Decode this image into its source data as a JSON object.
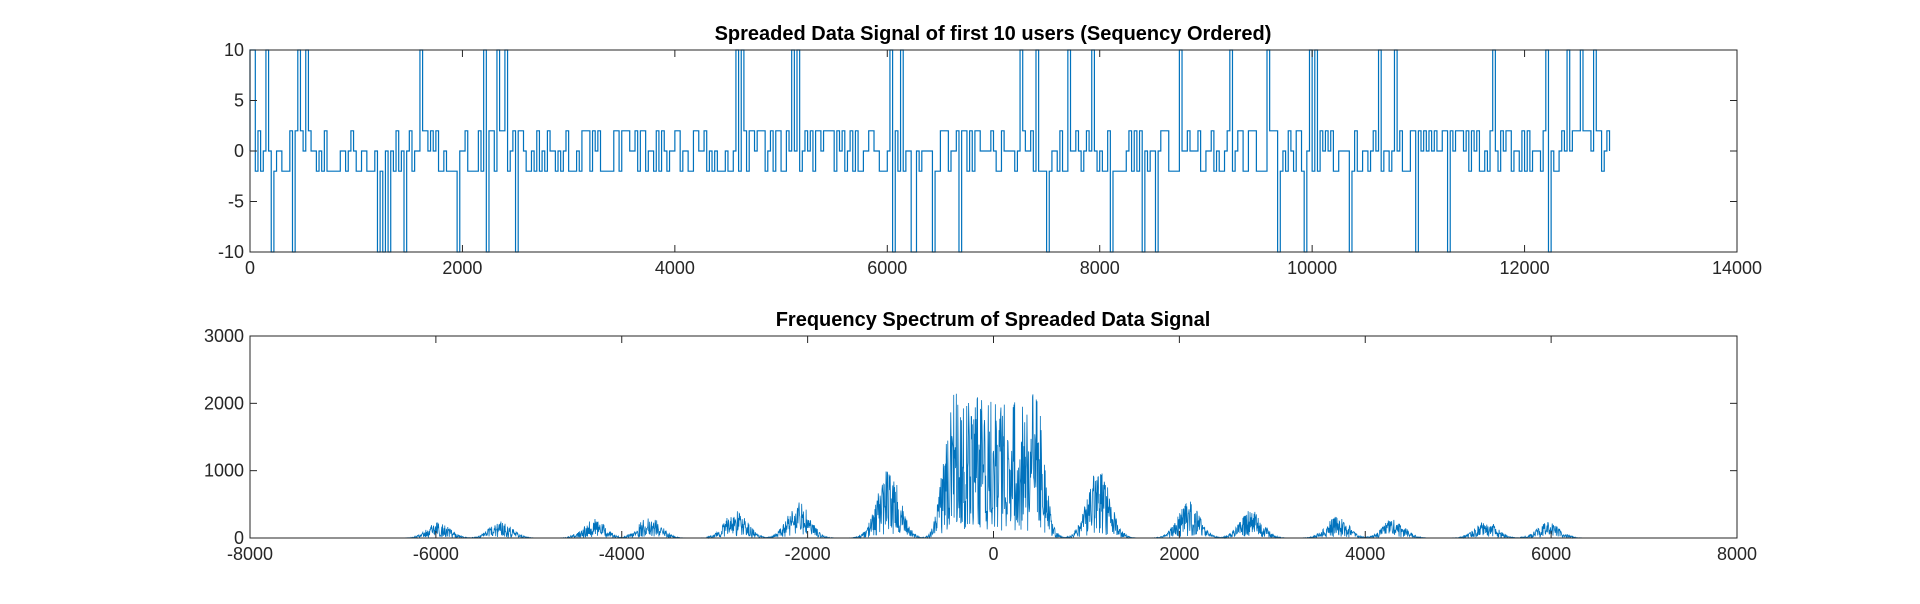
{
  "chart_data": [
    {
      "type": "line",
      "title": "Spreaded Data Signal of first 10 users (Sequency Ordered)",
      "xlabel": "",
      "ylabel": "",
      "xlim": [
        0,
        14000
      ],
      "ylim": [
        -10,
        10
      ],
      "xticks": [
        0,
        2000,
        4000,
        6000,
        8000,
        10000,
        12000,
        14000
      ],
      "yticks": [
        -10,
        -5,
        0,
        5,
        10
      ],
      "xtick_labels": [
        "0",
        "2000",
        "4000",
        "6000",
        "8000",
        "10000",
        "12000",
        "14000"
      ],
      "ytick_labels": [
        "-10",
        "-5",
        "0",
        "5",
        "10"
      ],
      "grid": false,
      "signal": {
        "x_start": 0,
        "x_end": 12800,
        "base_levels": [
          2,
          -2,
          0
        ],
        "spike_levels": [
          10,
          -10
        ],
        "color": "#0072BD"
      }
    },
    {
      "type": "line",
      "title": "Frequency Spectrum of Spreaded Data Signal",
      "xlabel": "",
      "ylabel": "",
      "xlim": [
        -8000,
        8000
      ],
      "ylim": [
        0,
        3000
      ],
      "xticks": [
        -8000,
        -6000,
        -4000,
        -2000,
        0,
        2000,
        4000,
        6000,
        8000
      ],
      "yticks": [
        0,
        1000,
        2000,
        3000
      ],
      "xtick_labels": [
        "-8000",
        "-6000",
        "-4000",
        "-2000",
        "0",
        "2000",
        "4000",
        "6000",
        "8000"
      ],
      "ytick_labels": [
        "0",
        "1000",
        "2000",
        "3000"
      ],
      "grid": false,
      "spectrum": {
        "x_start": -6400,
        "x_end": 6400,
        "peaks": [
          {
            "x": 0,
            "y": 2450
          },
          {
            "x": -430,
            "y": 2400
          },
          {
            "x": 430,
            "y": 2400
          },
          {
            "x": -1130,
            "y": 1050
          },
          {
            "x": 1130,
            "y": 1050
          },
          {
            "x": -2100,
            "y": 550
          },
          {
            "x": 2100,
            "y": 550
          },
          {
            "x": -2770,
            "y": 420
          },
          {
            "x": 2770,
            "y": 420
          },
          {
            "x": -3700,
            "y": 330
          },
          {
            "x": 3700,
            "y": 330
          },
          {
            "x": -4300,
            "y": 290
          },
          {
            "x": 4300,
            "y": 290
          },
          {
            "x": -5300,
            "y": 260
          },
          {
            "x": 5300,
            "y": 260
          },
          {
            "x": -5970,
            "y": 240
          },
          {
            "x": 5970,
            "y": 240
          }
        ],
        "color": "#0072BD"
      }
    }
  ]
}
